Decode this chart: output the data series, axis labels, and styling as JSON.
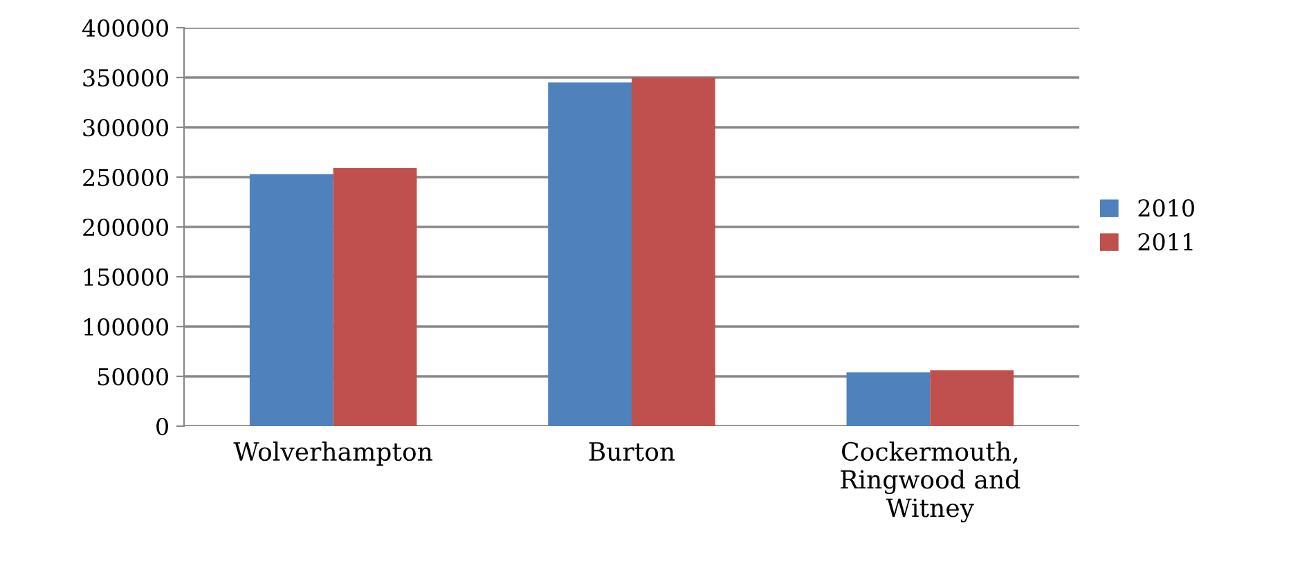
{
  "chart_data": {
    "type": "bar",
    "categories": [
      "Wolverhampton",
      "Burton",
      "Cockermouth,\nRingwood and\nWitney"
    ],
    "series": [
      {
        "name": "2010",
        "color": "#4f81bd",
        "values": [
          253000,
          345000,
          54000
        ]
      },
      {
        "name": "2011",
        "color": "#c0504d",
        "values": [
          259000,
          350000,
          56000
        ]
      }
    ],
    "ylim": [
      0,
      400000
    ],
    "yticks": [
      0,
      50000,
      100000,
      150000,
      200000,
      250000,
      300000,
      350000,
      400000
    ],
    "grid": "y",
    "legend": "right"
  }
}
